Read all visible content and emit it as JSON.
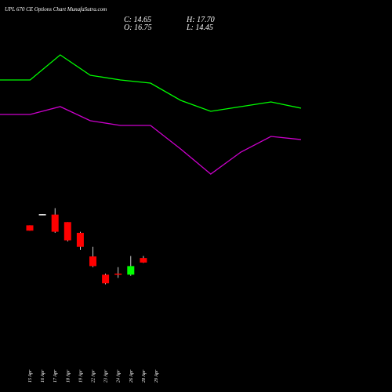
{
  "header": {
    "title": "UPL 670 CE Options Chart MunafaSutra.com",
    "close_label": "C:",
    "close_value": "14.65",
    "open_label": "O:",
    "open_value": "16.75",
    "high_label": "H:",
    "high_value": "17.70",
    "low_label": "L:",
    "low_value": "14.45"
  },
  "colors": {
    "background": "#000000",
    "upper_line": "#00ff00",
    "lower_line": "#cc00cc",
    "bull_candle": "#00ff00",
    "bear_candle": "#ff0000",
    "wick": "#ffffff"
  },
  "chart_data": {
    "type": "candlestick",
    "categories": [
      "15 Apr",
      "16 Apr",
      "17 Apr",
      "18 Apr",
      "19 Apr",
      "22 Apr",
      "23 Apr",
      "24 Apr",
      "26 Apr",
      "28 Apr",
      "29 Apr"
    ],
    "candles": [
      {
        "date": "15 Apr",
        "open": 32.0,
        "high": 32.0,
        "low": 29.5,
        "close": 29.5,
        "dir": "down"
      },
      {
        "date": "16 Apr",
        "open": 37.2,
        "high": 37.2,
        "low": 37.0,
        "close": 37.0,
        "dir": "flat"
      },
      {
        "date": "17 Apr",
        "open": 37.0,
        "high": 40.0,
        "low": 28.5,
        "close": 29.0,
        "dir": "down"
      },
      {
        "date": "18 Apr",
        "open": 33.5,
        "high": 33.5,
        "low": 24.5,
        "close": 25.0,
        "dir": "down"
      },
      {
        "date": "19 Apr",
        "open": 28.5,
        "high": 29.0,
        "low": 20.5,
        "close": 22.0,
        "dir": "down"
      },
      {
        "date": "22 Apr",
        "open": 17.5,
        "high": 22.0,
        "low": 12.5,
        "close": 13.0,
        "dir": "down"
      },
      {
        "date": "23 Apr",
        "open": 9.0,
        "high": 9.5,
        "low": 4.5,
        "close": 5.0,
        "dir": "down"
      },
      {
        "date": "24 Apr",
        "open": 9.5,
        "high": 12.5,
        "low": 7.5,
        "close": 9.0,
        "dir": "down"
      },
      {
        "date": "26 Apr",
        "open": 9.0,
        "high": 17.7,
        "low": 8.5,
        "close": 13.0,
        "dir": "up"
      },
      {
        "date": "28 Apr",
        "open": 16.75,
        "high": 17.7,
        "low": 14.45,
        "close": 14.65,
        "dir": "down"
      },
      {
        "date": "29 Apr",
        "open": null,
        "high": null,
        "low": null,
        "close": null,
        "dir": "none"
      }
    ],
    "upper_line": [
      79,
      79,
      95,
      82,
      79,
      77,
      66,
      59,
      62,
      65,
      61
    ],
    "lower_line": [
      57,
      57,
      62,
      53,
      50,
      50,
      35,
      19,
      33,
      43,
      41
    ],
    "line_x": [
      0,
      1,
      2,
      3,
      4,
      5,
      6,
      7,
      8,
      9,
      10
    ],
    "ylim": [
      0,
      100
    ]
  }
}
